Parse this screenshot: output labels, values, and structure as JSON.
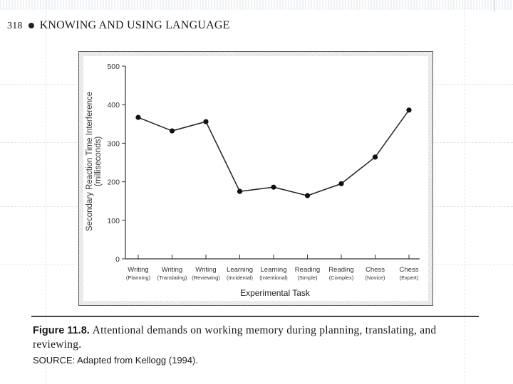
{
  "running_head": {
    "page_number": "318",
    "title": "KNOWING AND USING LANGUAGE"
  },
  "figure": {
    "label": "Figure 11.8.",
    "caption": "Attentional demands on working memory during planning, translating, and reviewing.",
    "source": "SOURCE: Adapted from Kellogg (1994)."
  },
  "chart_data": {
    "type": "line",
    "title": "",
    "xlabel": "Experimental Task",
    "ylabel": "Secondary Reaction Time Interference",
    "ylabel_units": "(milliseconds)",
    "ylim": [
      0,
      500
    ],
    "yticks": [
      "0",
      "100",
      "200",
      "300",
      "400",
      "500"
    ],
    "grid": false,
    "categories": [
      [
        "Writing",
        "(Planning)"
      ],
      [
        "Writing",
        "(Translating)"
      ],
      [
        "Writing",
        "(Reviewing)"
      ],
      [
        "Learning",
        "(Incidental)"
      ],
      [
        "Learning",
        "(Intentional)"
      ],
      [
        "Reading",
        "(Simple)"
      ],
      [
        "Reading",
        "(Complex)"
      ],
      [
        "Chess",
        "(Novice)"
      ],
      [
        "Chess",
        "(Expert)"
      ]
    ],
    "series": [
      {
        "values": [
          367,
          332,
          356,
          175,
          186,
          164,
          195,
          264,
          386
        ]
      }
    ],
    "colors": {
      "line": "#2b2b2b",
      "marker": "#111111"
    }
  }
}
